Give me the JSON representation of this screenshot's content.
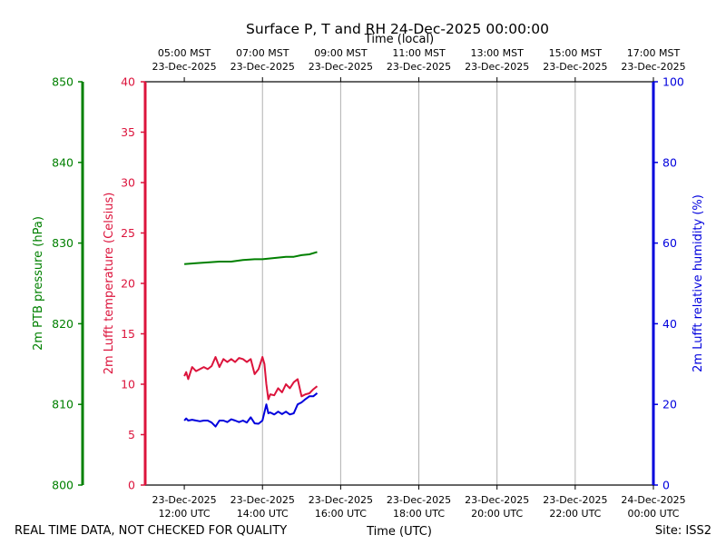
{
  "colors": {
    "pressure": "#008000",
    "temperature": "#dc143c",
    "humidity": "#0000dd",
    "grid": "#b0b0b0",
    "frame": "#000000"
  },
  "footer": {
    "left_note": "REAL TIME DATA, NOT CHECKED FOR QUALITY",
    "site": "Site: ISS2"
  },
  "chart_data": {
    "type": "line",
    "title": "Surface P, T and RH 24-Dec-2025 00:00:00",
    "xlabel": "Time (UTC)",
    "top_xlabel": "Time (local)",
    "xlim_hours_utc": [
      11,
      24
    ],
    "grid": "vertical",
    "x_ticks": [
      {
        "utc": 12,
        "label_line1": "23-Dec-2025",
        "label_line2": "12:00 UTC"
      },
      {
        "utc": 14,
        "label_line1": "23-Dec-2025",
        "label_line2": "14:00 UTC"
      },
      {
        "utc": 16,
        "label_line1": "23-Dec-2025",
        "label_line2": "16:00 UTC"
      },
      {
        "utc": 18,
        "label_line1": "23-Dec-2025",
        "label_line2": "18:00 UTC"
      },
      {
        "utc": 20,
        "label_line1": "23-Dec-2025",
        "label_line2": "20:00 UTC"
      },
      {
        "utc": 22,
        "label_line1": "23-Dec-2025",
        "label_line2": "22:00 UTC"
      },
      {
        "utc": 24,
        "label_line1": "24-Dec-2025",
        "label_line2": "00:00 UTC"
      }
    ],
    "top_ticks": [
      {
        "utc": 12,
        "label_line1": "05:00 MST",
        "label_line2": "23-Dec-2025"
      },
      {
        "utc": 14,
        "label_line1": "07:00 MST",
        "label_line2": "23-Dec-2025"
      },
      {
        "utc": 16,
        "label_line1": "09:00 MST",
        "label_line2": "23-Dec-2025"
      },
      {
        "utc": 18,
        "label_line1": "11:00 MST",
        "label_line2": "23-Dec-2025"
      },
      {
        "utc": 20,
        "label_line1": "13:00 MST",
        "label_line2": "23-Dec-2025"
      },
      {
        "utc": 22,
        "label_line1": "15:00 MST",
        "label_line2": "23-Dec-2025"
      },
      {
        "utc": 24,
        "label_line1": "17:00 MST",
        "label_line2": "23-Dec-2025"
      }
    ],
    "axes": {
      "pressure": {
        "label": "2m PTB pressure (hPa)",
        "ylim": [
          800,
          850
        ],
        "ticks": [
          800,
          810,
          820,
          830,
          840,
          850
        ]
      },
      "temperature": {
        "label": "2m Lufft temperature (Celsius)",
        "ylim": [
          0,
          40
        ],
        "ticks": [
          0,
          5,
          10,
          15,
          20,
          25,
          30,
          35,
          40
        ]
      },
      "humidity": {
        "label": "2m Lufft relative humidity (%)",
        "ylim": [
          0,
          100
        ],
        "ticks": [
          0,
          20,
          40,
          60,
          80,
          100
        ]
      }
    },
    "series": [
      {
        "axis": "pressure",
        "x": [
          12.0,
          12.3,
          12.6,
          12.9,
          13.2,
          13.5,
          13.8,
          14.0,
          14.2,
          14.4,
          14.6,
          14.8,
          15.0,
          15.2,
          15.4
        ],
        "y": [
          827.4,
          827.5,
          827.6,
          827.7,
          827.7,
          827.9,
          828.0,
          828.0,
          828.1,
          828.2,
          828.3,
          828.3,
          828.5,
          828.6,
          828.9
        ]
      },
      {
        "axis": "temperature",
        "x": [
          12.0,
          12.05,
          12.1,
          12.2,
          12.3,
          12.4,
          12.5,
          12.6,
          12.7,
          12.8,
          12.9,
          13.0,
          13.1,
          13.2,
          13.3,
          13.4,
          13.5,
          13.6,
          13.7,
          13.8,
          13.9,
          14.0,
          14.05,
          14.1,
          14.15,
          14.2,
          14.3,
          14.4,
          14.5,
          14.6,
          14.7,
          14.8,
          14.9,
          15.0,
          15.1,
          15.2,
          15.3,
          15.4
        ],
        "y": [
          10.8,
          11.2,
          10.5,
          11.7,
          11.3,
          11.5,
          11.7,
          11.5,
          11.8,
          12.7,
          11.7,
          12.5,
          12.2,
          12.5,
          12.2,
          12.6,
          12.5,
          12.2,
          12.5,
          11.0,
          11.5,
          12.7,
          12.0,
          10.0,
          8.5,
          9.0,
          8.9,
          9.6,
          9.2,
          10.0,
          9.6,
          10.2,
          10.5,
          8.8,
          9.0,
          9.1,
          9.5,
          9.8
        ]
      },
      {
        "axis": "humidity",
        "x": [
          12.0,
          12.05,
          12.1,
          12.2,
          12.3,
          12.4,
          12.5,
          12.6,
          12.7,
          12.8,
          12.9,
          13.0,
          13.1,
          13.2,
          13.3,
          13.4,
          13.5,
          13.6,
          13.7,
          13.8,
          13.9,
          14.0,
          14.1,
          14.15,
          14.2,
          14.3,
          14.4,
          14.5,
          14.6,
          14.7,
          14.8,
          14.9,
          15.0,
          15.1,
          15.2,
          15.3,
          15.4
        ],
        "y": [
          16.0,
          16.5,
          16.0,
          16.2,
          16.0,
          15.8,
          16.0,
          16.0,
          15.5,
          14.5,
          16.0,
          16.0,
          15.6,
          16.3,
          16.0,
          15.6,
          16.0,
          15.5,
          16.8,
          15.3,
          15.2,
          16.0,
          20.0,
          17.8,
          18.0,
          17.5,
          18.2,
          17.6,
          18.2,
          17.5,
          17.8,
          20.0,
          20.5,
          21.3,
          22.0,
          22.0,
          22.8
        ]
      }
    ]
  }
}
